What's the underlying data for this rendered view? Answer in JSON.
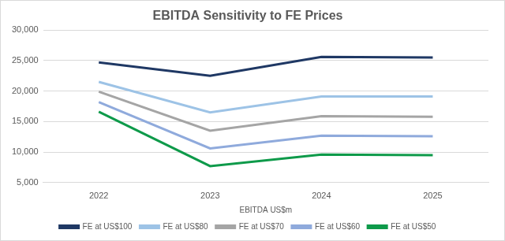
{
  "chart_data": {
    "type": "line",
    "title": "EBITDA Sensitivity to FE Prices",
    "x_label": "EBITDA US$m",
    "categories": [
      "2022",
      "2023",
      "2024",
      "2025"
    ],
    "series": [
      {
        "name": "FE at US$100",
        "color": "#1f3864",
        "values": [
          24700,
          22500,
          25600,
          25500
        ]
      },
      {
        "name": "FE at US$80",
        "color": "#9dc3e6",
        "values": [
          21500,
          16500,
          19100,
          19100
        ]
      },
      {
        "name": "FE at US$70",
        "color": "#a5a5a5",
        "values": [
          19900,
          13500,
          15900,
          15800
        ]
      },
      {
        "name": "FE at US$60",
        "color": "#8faadc",
        "values": [
          18200,
          10600,
          12700,
          12600
        ]
      },
      {
        "name": "FE at US$50",
        "color": "#0e9a4a",
        "values": [
          16600,
          7700,
          9600,
          9500
        ]
      }
    ],
    "ylim": [
      5000,
      30000
    ],
    "yticks": [
      {
        "value": 5000,
        "label": "5,000"
      },
      {
        "value": 10000,
        "label": "10,000"
      },
      {
        "value": 15000,
        "label": "15,000"
      },
      {
        "value": 20000,
        "label": "20,000"
      },
      {
        "value": 25000,
        "label": "25,000"
      },
      {
        "value": 30000,
        "label": "30,000"
      }
    ],
    "grid": true,
    "legend": "bottom",
    "marker": "none",
    "line_style": "solid"
  }
}
